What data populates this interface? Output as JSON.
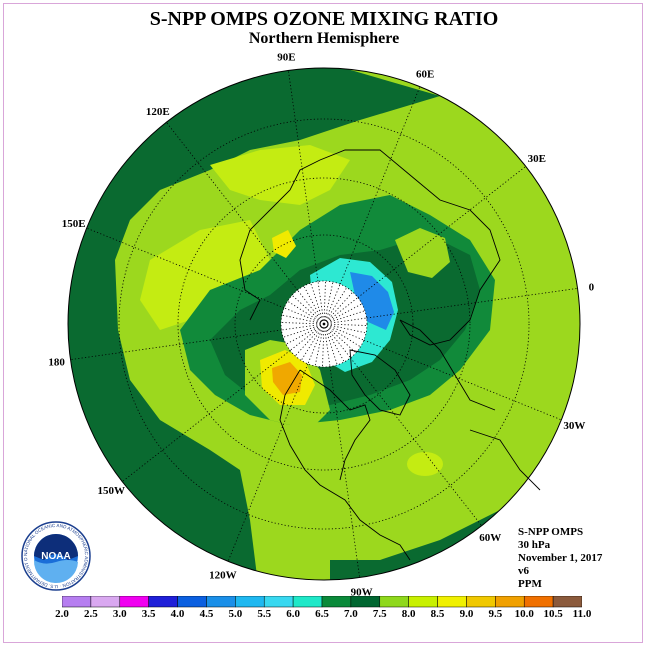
{
  "title": "S-NPP OMPS OZONE MIXING RATIO",
  "subtitle": "Northern Hemisphere",
  "longitude_labels": [
    {
      "text": "90E",
      "lon": 90
    },
    {
      "text": "60E",
      "lon": 60
    },
    {
      "text": "30E",
      "lon": 30
    },
    {
      "text": "0",
      "lon": 0
    },
    {
      "text": "30W",
      "lon": -30
    },
    {
      "text": "60W",
      "lon": -60
    },
    {
      "text": "90W",
      "lon": -90
    },
    {
      "text": "120W",
      "lon": -120
    },
    {
      "text": "150W",
      "lon": -150
    },
    {
      "text": "180",
      "lon": 180
    },
    {
      "text": "150E",
      "lon": 150
    },
    {
      "text": "120E",
      "lon": 120
    }
  ],
  "info": {
    "instrument": "S-NPP OMPS",
    "level": "30 hPa",
    "date": "November 1, 2017",
    "version": "v6",
    "units": "PPM"
  },
  "colorbar": {
    "labels": [
      "2.0",
      "2.5",
      "3.0",
      "3.5",
      "4.0",
      "4.5",
      "5.0",
      "5.5",
      "6.0",
      "6.5",
      "7.0",
      "7.5",
      "8.0",
      "8.5",
      "9.0",
      "9.5",
      "10.0",
      "10.5",
      "11.0"
    ],
    "colors": [
      "#b67ef0",
      "#d9a8f0",
      "#f000f0",
      "#1f1fd8",
      "#0b5fe0",
      "#1a8fe8",
      "#1fb8f0",
      "#38d8f0",
      "#1fe8c8",
      "#0a8a3a",
      "#006630",
      "#8fd81c",
      "#c8f000",
      "#f0f000",
      "#f0c800",
      "#f0a000",
      "#f07000",
      "#f01010",
      "#8b5a3c"
    ]
  },
  "logo": {
    "text": "NOAA",
    "ring_text": "NATIONAL OCEANIC AND ATMOSPHERIC ADMINISTRATION · U.S. DEPARTMENT OF COMMERCE"
  },
  "colors": {
    "dark_green": "#0a6a30",
    "mid_green": "#118a3a",
    "light_green": "#9cd81e",
    "yellow_green": "#c4ec12",
    "yellow": "#f0ea00",
    "orange": "#f0a800",
    "cyan": "#2de8d2",
    "blue": "#1f8ae8",
    "polar_night": "#ffffff"
  }
}
